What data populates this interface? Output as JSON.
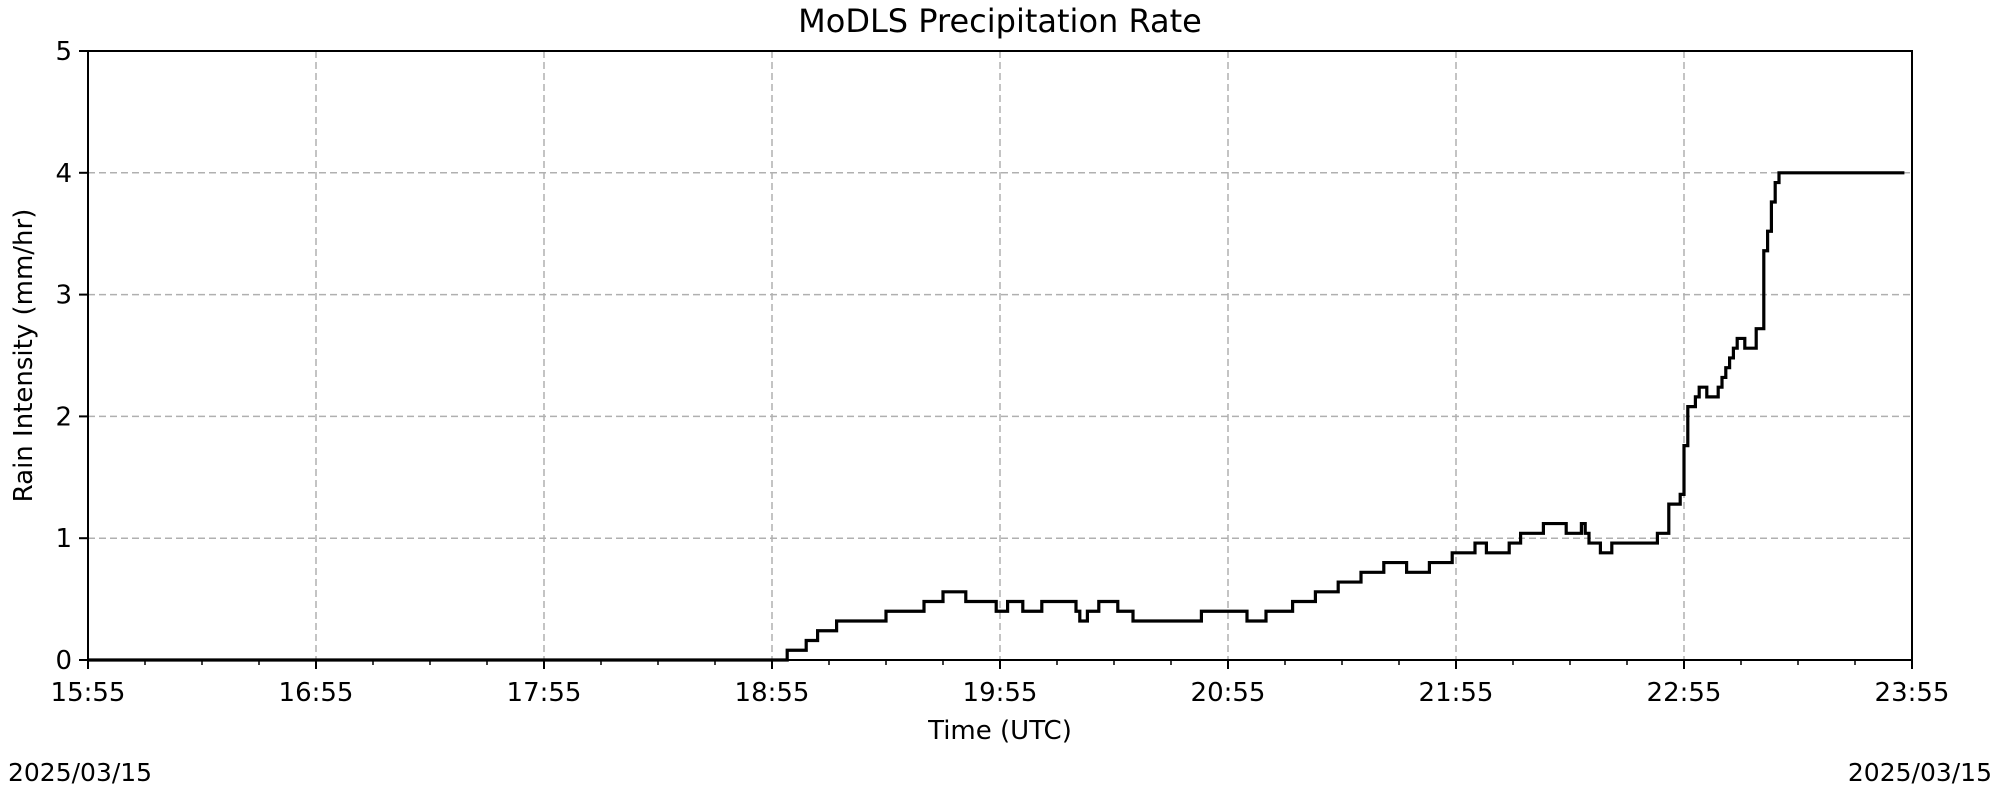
{
  "chart_data": {
    "type": "line",
    "title": "MoDLS Precipitation Rate",
    "xlabel": "Time (UTC)",
    "ylabel": "Rain Intensity (mm/hr)",
    "x_ticks": [
      "15:55",
      "16:55",
      "17:55",
      "18:55",
      "19:55",
      "20:55",
      "21:55",
      "22:55",
      "23:55"
    ],
    "xlim": [
      "15:55",
      "23:55"
    ],
    "y_ticks": [
      0,
      1,
      2,
      3,
      4,
      5
    ],
    "ylim": [
      0,
      5
    ],
    "grid": true,
    "step": true,
    "line_color": "#000000",
    "grid_color": "#b0b0b0",
    "series": [
      {
        "x": [
          "15:55",
          "18:59",
          "18:59",
          "19:04",
          "19:07",
          "19:12",
          "19:18",
          "19:25",
          "19:30",
          "19:35",
          "19:40",
          "19:46",
          "19:51",
          "19:54",
          "19:57",
          "20:01",
          "20:06",
          "20:11",
          "20:14",
          "20:15",
          "20:16",
          "20:18",
          "20:21",
          "20:26",
          "20:30",
          "20:36",
          "20:42",
          "20:48",
          "20:54",
          "21:00",
          "21:05",
          "21:12",
          "21:18",
          "21:24",
          "21:30",
          "21:36",
          "21:42",
          "21:48",
          "21:54",
          "22:00",
          "22:03",
          "22:06",
          "22:09",
          "22:12",
          "22:18",
          "22:24",
          "22:28",
          "22:29",
          "22:30",
          "22:33",
          "22:36",
          "22:42",
          "22:48",
          "22:51",
          "22:54",
          "22:55",
          "22:56",
          "22:58",
          "22:59",
          "23:01",
          "23:04",
          "23:05",
          "23:06",
          "23:07",
          "23:08",
          "23:09",
          "23:11",
          "23:14",
          "23:16",
          "23:16",
          "23:17",
          "23:18",
          "23:19",
          "23:19",
          "23:20",
          "23:21",
          "23:22",
          "23:23",
          "23:24",
          "23:25",
          "23:26",
          "23:27",
          "23:28",
          "23:29",
          "23:30",
          "23:31",
          "23:32",
          "23:33",
          "23:34",
          "23:35",
          "23:36",
          "23:37",
          "23:38",
          "23:39",
          "23:40",
          "23:41",
          "23:42",
          "23:43",
          "23:45",
          "23:47",
          "23:53"
        ],
        "y": [
          0,
          0,
          0.08,
          0.16,
          0.24,
          0.32,
          0.32,
          0.4,
          0.4,
          0.48,
          0.56,
          0.48,
          0.48,
          0.4,
          0.48,
          0.4,
          0.48,
          0.48,
          0.48,
          0.4,
          0.32,
          0.4,
          0.48,
          0.4,
          0.32,
          0.32,
          0.32,
          0.4,
          0.4,
          0.32,
          0.4,
          0.48,
          0.56,
          0.64,
          0.72,
          0.8,
          0.72,
          0.8,
          0.88,
          0.96,
          0.88,
          0.88,
          0.96,
          1.04,
          1.12,
          1.04,
          1.12,
          1.04,
          0.96,
          0.88,
          0.96,
          0.96,
          1.04,
          1.28,
          1.36,
          1.76,
          2.08,
          2.16,
          2.24,
          2.16,
          2.24,
          2.32,
          2.4,
          2.48,
          2.56,
          2.64,
          2.56,
          2.72,
          3.04,
          3.36,
          3.52,
          3.76,
          3.84,
          3.92,
          4.0,
          4.0,
          4.0,
          4.0,
          4.0,
          4.0,
          4.0,
          4.0,
          4.0,
          4.0,
          4.0,
          4.0,
          4.0,
          4.0,
          4.0,
          4.0,
          4.0,
          4.0,
          4.0,
          4.0,
          4.0,
          4.0,
          4.0,
          4.0,
          4.0,
          4.0,
          4.0
        ]
      }
    ]
  },
  "footer": {
    "date_left": "2025/03/15",
    "date_right": "2025/03/15"
  }
}
